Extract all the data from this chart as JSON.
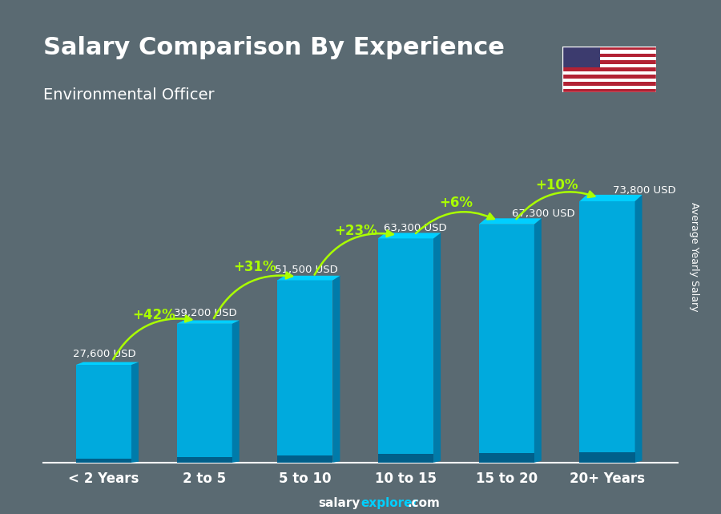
{
  "title": "Salary Comparison By Experience",
  "subtitle": "Environmental Officer",
  "ylabel": "Average Yearly Salary",
  "categories": [
    "< 2 Years",
    "2 to 5",
    "5 to 10",
    "10 to 15",
    "15 to 20",
    "20+ Years"
  ],
  "values": [
    27600,
    39200,
    51500,
    63300,
    67300,
    73800
  ],
  "labels": [
    "27,600 USD",
    "39,200 USD",
    "51,500 USD",
    "63,300 USD",
    "67,300 USD",
    "73,800 USD"
  ],
  "pct_changes": [
    "+42%",
    "+31%",
    "+23%",
    "+6%",
    "+10%"
  ],
  "bar_color_top": "#00cfff",
  "bar_color_mid": "#00aadd",
  "bar_color_side": "#007baa",
  "bar_color_bottom": "#005f8a",
  "arrow_color": "#aaff00",
  "pct_color": "#aaff00",
  "label_color": "#ffffff",
  "title_color": "#ffffff",
  "subtitle_color": "#ffffff",
  "background_color": "#5a6a72",
  "footer_text": "salaryexplorer.com",
  "footer_salary": "salary",
  "footer_explorer": "explorer",
  "bar_width": 0.55,
  "ylim": [
    0,
    90000
  ]
}
